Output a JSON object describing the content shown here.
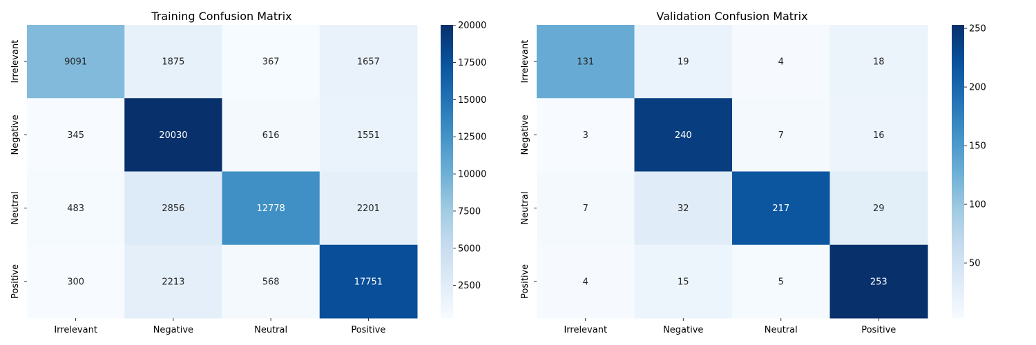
{
  "chart_data": [
    {
      "type": "heatmap",
      "title": "Training Confusion Matrix",
      "xlabel": "",
      "ylabel": "",
      "x_categories": [
        "Irrelevant",
        "Negative",
        "Neutral",
        "Positive"
      ],
      "y_categories": [
        "Irrelevant",
        "Negative",
        "Neutral",
        "Positive"
      ],
      "values": [
        [
          9091,
          1875,
          367,
          1657
        ],
        [
          345,
          20030,
          616,
          1551
        ],
        [
          483,
          2856,
          12778,
          2201
        ],
        [
          300,
          2213,
          568,
          17751
        ]
      ],
      "colormap": "Blues",
      "colorbar": {
        "min": 300,
        "max": 20030,
        "ticks": [
          2500,
          5000,
          7500,
          10000,
          12500,
          15000,
          17500,
          20000
        ]
      }
    },
    {
      "type": "heatmap",
      "title": "Validation Confusion Matrix",
      "xlabel": "",
      "ylabel": "",
      "x_categories": [
        "Irrelevant",
        "Negative",
        "Neutral",
        "Positive"
      ],
      "y_categories": [
        "Irrelevant",
        "Negative",
        "Neutral",
        "Positive"
      ],
      "values": [
        [
          131,
          19,
          4,
          18
        ],
        [
          3,
          240,
          7,
          16
        ],
        [
          7,
          32,
          217,
          29
        ],
        [
          4,
          15,
          5,
          253
        ]
      ],
      "colormap": "Blues",
      "colorbar": {
        "min": 3,
        "max": 253,
        "ticks": [
          50,
          100,
          150,
          200,
          250
        ]
      }
    }
  ]
}
